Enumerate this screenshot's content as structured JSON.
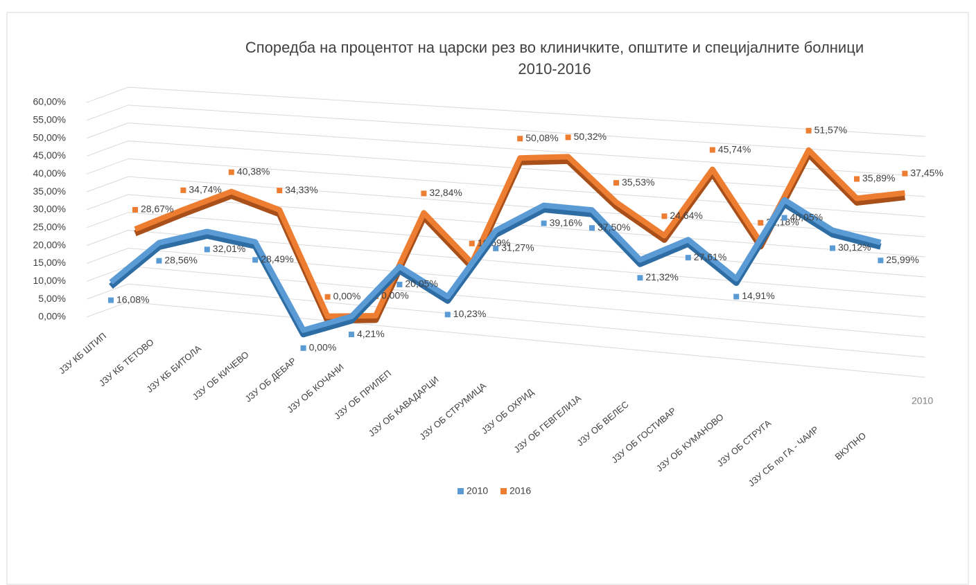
{
  "chart_data": {
    "type": "line3d",
    "title": [
      "Споредба на процентот на царски рез во клиничките, општите и специјалните болници",
      "2010-2016"
    ],
    "categories": [
      "ЈЗУ КБ ШТИП",
      "ЈЗУ КБ ТЕТОВО",
      "ЈЗУ КБ БИТОЛА",
      "ЈЗУ ОБ КИЧЕВО",
      "ЈЗУ ОБ ДЕБАР",
      "ЈЗУ ОБ КОЧАНИ",
      "ЈЗУ ОБ ПРИЛЕП",
      "ЈЗУ ОБ КАВАДАРЦИ",
      "ЈЗУ ОБ СТРУМИЦА",
      "ЈЗУ ОБ ОХРИД",
      "ЈЗУ ОБ ГЕВГЕЛИЈА",
      "ЈЗУ ОБ ВЕЛЕС",
      "ЈЗУ ОБ ГОСТИВАР",
      "ЈЗУ ОБ КУМАНОВО",
      "ЈЗУ ОБ СТРУГА",
      "ЈЗУ СБ по ГА - ЧАИР",
      "ВКУПНО"
    ],
    "series": [
      {
        "name": "2010",
        "color": "#5b9bd5",
        "values": [
          16.08,
          28.56,
          32.01,
          28.49,
          0,
          4.21,
          20.05,
          10.23,
          31.27,
          39.16,
          37.5,
          21.32,
          27.61,
          14.91,
          40.05,
          30.12,
          25.99
        ],
        "value_labels": [
          "16,08%",
          "28,56%",
          "32,01%",
          "28,49%",
          "0,00%",
          "4,21%",
          "20,05%",
          "10,23%",
          "31,27%",
          "39,16%",
          "37,50%",
          "21,32%",
          "27,61%",
          "14,91%",
          "40,05%",
          "30,12%",
          "25,99%"
        ]
      },
      {
        "name": "2016",
        "color": "#ed7d31",
        "values": [
          28.67,
          34.74,
          40.38,
          34.33,
          0,
          0,
          32.84,
          16.59,
          50.08,
          50.32,
          35.53,
          24.64,
          45.74,
          22.18,
          51.57,
          35.89,
          37.45
        ],
        "value_labels": [
          "28,67%",
          "34,74%",
          "40,38%",
          "34,33%",
          "0,00%",
          "0,00%",
          "32,84%",
          "16,59%",
          "50,08%",
          "50,32%",
          "35,53%",
          "24,64%",
          "45,74%",
          "22,18%",
          "51,57%",
          "35,89%",
          "37,45%"
        ]
      }
    ],
    "ylim": [
      0,
      60
    ],
    "yticks": [
      {
        "value": 0,
        "label": "0,00%"
      },
      {
        "value": 5,
        "label": "5,00%"
      },
      {
        "value": 10,
        "label": "10,00%"
      },
      {
        "value": 15,
        "label": "15,00%"
      },
      {
        "value": 20,
        "label": "20,00%"
      },
      {
        "value": 25,
        "label": "25,00%"
      },
      {
        "value": 30,
        "label": "30,00%"
      },
      {
        "value": 35,
        "label": "35,00%"
      },
      {
        "value": 40,
        "label": "40,00%"
      },
      {
        "value": 45,
        "label": "45,00%"
      },
      {
        "value": 50,
        "label": "50,00%"
      },
      {
        "value": 55,
        "label": "55,00%"
      },
      {
        "value": 60,
        "label": "60,00%"
      }
    ],
    "grid": true,
    "legend": "bottom"
  }
}
